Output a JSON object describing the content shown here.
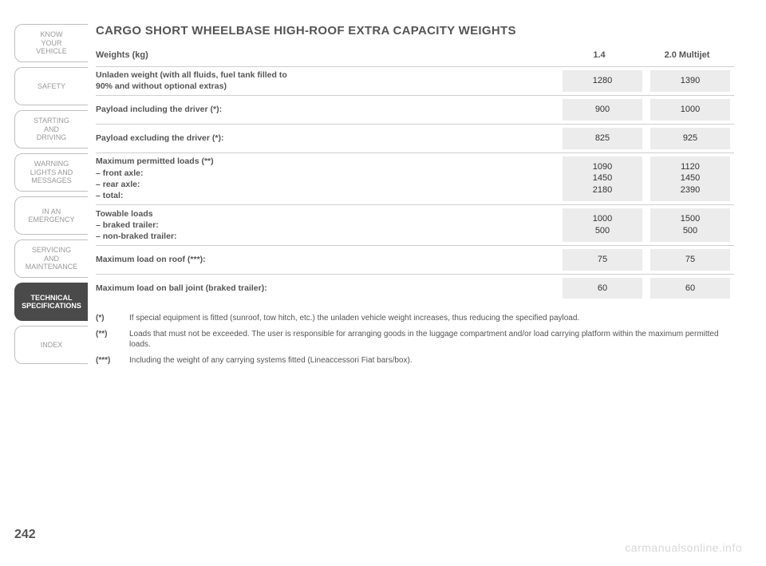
{
  "sidebar": {
    "tabs": [
      {
        "label": "KNOW\nYOUR\nVEHICLE",
        "active": false
      },
      {
        "label": "SAFETY",
        "active": false
      },
      {
        "label": "STARTING\nAND\nDRIVING",
        "active": false
      },
      {
        "label": "WARNING\nLIGHTS AND\nMESSAGES",
        "active": false
      },
      {
        "label": "IN AN\nEMERGENCY",
        "active": false
      },
      {
        "label": "SERVICING\nAND\nMAINTENANCE",
        "active": false
      },
      {
        "label": "TECHNICAL\nSPECIFICATIONS",
        "active": true
      },
      {
        "label": "INDEX",
        "active": false
      }
    ]
  },
  "title": "CARGO SHORT WHEELBASE HIGH-ROOF EXTRA CAPACITY WEIGHTS",
  "table": {
    "header_label": "Weights (kg)",
    "columns": [
      "1.4",
      "2.0 Multijet"
    ],
    "rows": [
      {
        "label": "Unladen weight (with all fluids, fuel tank filled to\n90% and without optional extras)",
        "values": [
          "1280",
          "1390"
        ]
      },
      {
        "label": "Payload including the driver (*):",
        "values": [
          "900",
          "1000"
        ]
      },
      {
        "label": "Payload excluding the driver (*):",
        "values": [
          "825",
          "925"
        ]
      },
      {
        "label": "Maximum permitted loads (**)\n– front axle:\n– rear axle:\n– total:",
        "values": [
          "1090\n1450\n2180",
          "1120\n1450\n2390"
        ]
      },
      {
        "label": "Towable loads\n– braked trailer:\n– non-braked trailer:",
        "values": [
          "1000\n500",
          "1500\n500"
        ]
      },
      {
        "label": "Maximum load on roof (***):",
        "values": [
          "75",
          "75"
        ]
      },
      {
        "label": "Maximum load on ball joint (braked trailer):",
        "values": [
          "60",
          "60"
        ]
      }
    ]
  },
  "footnotes": [
    {
      "mark": "(*)",
      "text": "If special equipment is fitted (sunroof, tow hitch, etc.) the unladen vehicle weight increases, thus reducing the specified payload."
    },
    {
      "mark": "(**)",
      "text": "Loads that must not be exceeded. The user is responsible for arranging goods in the luggage compartment and/or load carrying platform within the maximum permitted loads."
    },
    {
      "mark": "(***)",
      "text": "Including the weight of any carrying systems fitted (Lineaccessori Fiat bars/box)."
    }
  ],
  "page_number": "242",
  "watermark": "carmanualsonline.info",
  "colors": {
    "background": "#ffffff",
    "text_muted": "#555555",
    "tab_border": "#bfbfbf",
    "tab_active_bg": "#4a4a4a",
    "row_divider": "#cfcfcf",
    "value_bg": "#ececec",
    "watermark": "#d8d8d8"
  }
}
